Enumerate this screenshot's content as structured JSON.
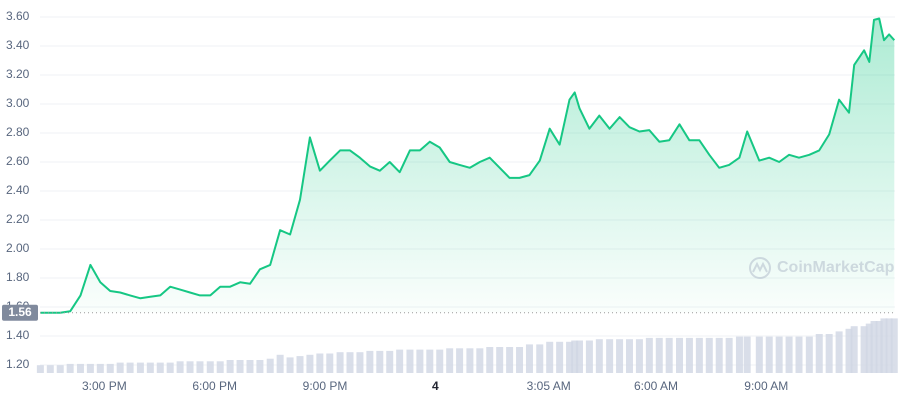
{
  "chart_data": {
    "type": "line",
    "watermark": "CoinMarketCap",
    "color": "#16c784",
    "volume_color": "#cfd6e4",
    "grid": true,
    "xlim": [
      13.25,
      36.5
    ],
    "ylim": [
      1.13,
      3.7
    ],
    "yticks": [
      {
        "value": 1.2,
        "label": "1.20"
      },
      {
        "value": 1.4,
        "label": "1.40"
      },
      {
        "value": 1.6,
        "label": "1.60"
      },
      {
        "value": 1.8,
        "label": "1.80"
      },
      {
        "value": 2.0,
        "label": "2.00"
      },
      {
        "value": 2.2,
        "label": "2.20"
      },
      {
        "value": 2.4,
        "label": "2.40"
      },
      {
        "value": 2.6,
        "label": "2.60"
      },
      {
        "value": 2.8,
        "label": "2.80"
      },
      {
        "value": 3.0,
        "label": "3.00"
      },
      {
        "value": 3.2,
        "label": "3.20"
      },
      {
        "value": 3.4,
        "label": "3.40"
      },
      {
        "value": 3.6,
        "label": "3.60"
      }
    ],
    "xticks": [
      {
        "value": 15,
        "label": "3:00 PM"
      },
      {
        "value": 18,
        "label": "6:00 PM"
      },
      {
        "value": 21,
        "label": "9:00 PM"
      },
      {
        "value": 24,
        "label": "4"
      },
      {
        "value": 27.083,
        "label": "3:05 AM"
      },
      {
        "value": 30,
        "label": "6:00 AM"
      },
      {
        "value": 33,
        "label": "9:00 AM"
      }
    ],
    "reference_price": {
      "value": 1.56,
      "label": "1.56"
    },
    "x": [
      13.26,
      13.53,
      13.8,
      14.07,
      14.35,
      14.62,
      14.89,
      15.16,
      15.43,
      15.7,
      15.98,
      16.25,
      16.52,
      16.79,
      17.06,
      17.33,
      17.6,
      17.88,
      18.15,
      18.42,
      18.69,
      18.96,
      19.23,
      19.51,
      19.78,
      20.05,
      20.32,
      20.59,
      20.86,
      21.13,
      21.41,
      21.68,
      21.95,
      22.22,
      22.49,
      22.76,
      23.03,
      23.31,
      23.58,
      23.85,
      24.12,
      24.39,
      24.66,
      24.94,
      25.21,
      25.48,
      25.75,
      26.02,
      26.29,
      26.56,
      26.84,
      27.11,
      27.38,
      27.65,
      27.79,
      27.92,
      28.19,
      28.46,
      28.74,
      29.01,
      29.28,
      29.55,
      29.82,
      30.09,
      30.36,
      30.64,
      30.91,
      31.18,
      31.45,
      31.72,
      31.99,
      32.27,
      32.48,
      32.81,
      33.08,
      33.35,
      33.62,
      33.89,
      34.17,
      34.44,
      34.71,
      34.98,
      35.25,
      35.39,
      35.66,
      35.8,
      35.93,
      36.07,
      36.2,
      36.34,
      36.48
    ],
    "values": [
      1.56,
      1.56,
      1.56,
      1.57,
      1.68,
      1.89,
      1.77,
      1.71,
      1.7,
      1.68,
      1.66,
      1.67,
      1.68,
      1.74,
      1.72,
      1.7,
      1.68,
      1.68,
      1.74,
      1.74,
      1.77,
      1.76,
      1.86,
      1.89,
      2.13,
      2.1,
      2.34,
      2.77,
      2.54,
      2.61,
      2.68,
      2.68,
      2.63,
      2.57,
      2.54,
      2.6,
      2.53,
      2.68,
      2.68,
      2.74,
      2.7,
      2.6,
      2.58,
      2.56,
      2.6,
      2.63,
      2.56,
      2.49,
      2.49,
      2.51,
      2.61,
      2.83,
      2.72,
      3.03,
      3.08,
      2.97,
      2.83,
      2.92,
      2.83,
      2.91,
      2.84,
      2.81,
      2.82,
      2.74,
      2.75,
      2.86,
      2.75,
      2.75,
      2.65,
      2.56,
      2.58,
      2.63,
      2.81,
      2.61,
      2.63,
      2.6,
      2.65,
      2.63,
      2.65,
      2.68,
      2.79,
      3.03,
      2.94,
      3.27,
      3.37,
      3.29,
      3.58,
      3.59,
      3.44,
      3.48,
      3.44
    ],
    "volume": [
      6,
      6,
      6,
      7,
      7,
      7,
      7,
      7,
      8,
      8,
      8,
      8,
      8,
      8,
      9,
      9,
      9,
      9,
      9,
      10,
      10,
      10,
      10,
      11,
      14,
      12,
      13,
      14,
      15,
      15,
      16,
      16,
      16,
      17,
      17,
      17,
      18,
      18,
      18,
      18,
      18,
      19,
      19,
      19,
      19,
      20,
      20,
      20,
      20,
      22,
      22,
      24,
      24,
      24,
      25,
      25,
      25,
      26,
      26,
      26,
      26,
      26,
      27,
      27,
      27,
      27,
      27,
      27,
      27,
      27,
      27,
      28,
      28,
      28,
      28,
      28,
      28,
      28,
      28,
      30,
      30,
      32,
      34,
      36,
      36,
      38,
      40,
      40,
      42,
      42,
      42
    ]
  }
}
